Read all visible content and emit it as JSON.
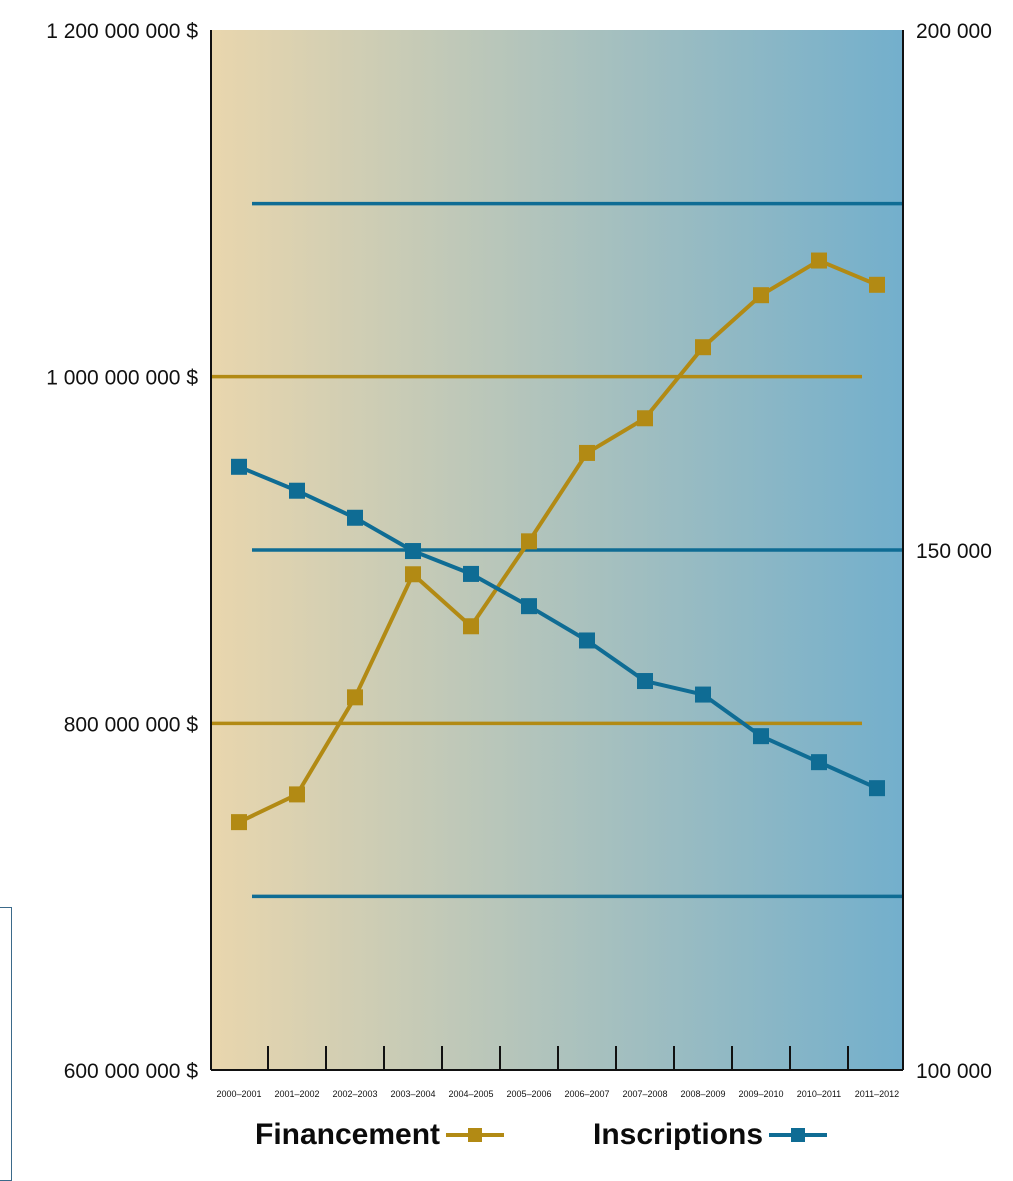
{
  "colors": {
    "financement": "#b28a14",
    "inscriptions": "#0f6c94",
    "bg_left": "#e9d6ad",
    "bg_right": "#73afcc",
    "axis": "#111111"
  },
  "legend": {
    "financement": "Financement",
    "inscriptions": "Inscriptions"
  },
  "chart_data": {
    "type": "line",
    "categories": [
      "2000–2001",
      "2001–2002",
      "2002–2003",
      "2003–2004",
      "2004–2005",
      "2005–2006",
      "2006–2007",
      "2007–2008",
      "2008–2009",
      "2009–2010",
      "2010–2011",
      "2011–2012"
    ],
    "series": [
      {
        "name": "Financement",
        "axis": "left",
        "values": [
          743000000,
          759000000,
          815000000,
          886000000,
          856000000,
          905000000,
          956000000,
          976000000,
          1017000000,
          1047000000,
          1067000000,
          1053000000
        ]
      },
      {
        "name": "Inscriptions",
        "axis": "right",
        "values": [
          158000,
          155700,
          153100,
          149900,
          147700,
          144600,
          141300,
          137400,
          136100,
          132100,
          129600,
          127100
        ]
      }
    ],
    "left_axis": {
      "ylim": [
        600000000,
        1200000000
      ],
      "ticks": [
        600000000,
        800000000,
        1000000000,
        1200000000
      ],
      "tick_labels": [
        "600 000 000 $",
        "800 000 000 $",
        "1 000 000 000 $",
        "1 200 000 000 $"
      ]
    },
    "right_axis": {
      "ylim": [
        100000,
        200000
      ],
      "ticks": [
        100000,
        150000,
        200000
      ],
      "tick_labels": [
        "100 000",
        "150 000",
        "200 000"
      ]
    },
    "gridlines": {
      "left": [
        800000000,
        1000000000
      ],
      "right": [
        116700,
        150000,
        183300
      ]
    },
    "legend_position": "bottom"
  }
}
